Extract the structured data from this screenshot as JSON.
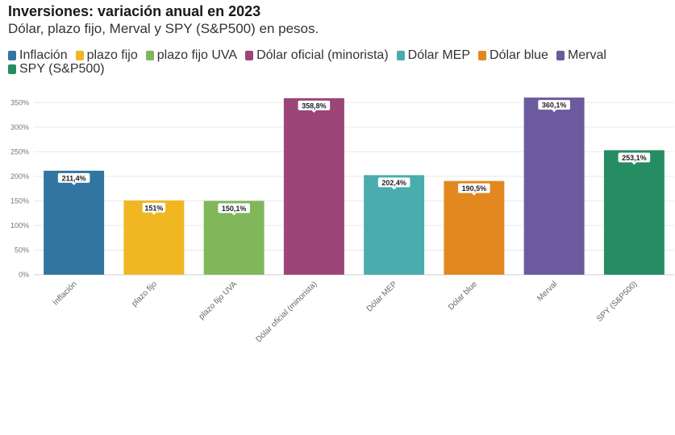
{
  "chart_data": {
    "type": "bar",
    "title": "Inversiones: variación anual en 2023",
    "subtitle": "Dólar, plazo fijo, Merval y SPY (S&P500) en pesos.",
    "xlabel": "",
    "ylabel": "",
    "ylim": [
      0,
      375
    ],
    "yticks": [
      0,
      50,
      100,
      150,
      200,
      250,
      300,
      350
    ],
    "ytick_labels": [
      "0%",
      "50%",
      "100%",
      "150%",
      "200%",
      "250%",
      "300%",
      "350%"
    ],
    "grid": true,
    "legend_position": "top",
    "categories": [
      "Inflación",
      "plazo fijo",
      "plazo fijo UVA",
      "Dólar oficial (minorista)",
      "Dólar MEP",
      "Dólar blue",
      "Merval",
      "SPY (S&P500)"
    ],
    "values": [
      211.4,
      151,
      150.1,
      358.8,
      202.4,
      190.5,
      360.1,
      253.1
    ],
    "value_labels": [
      "211,4%",
      "151%",
      "150,1%",
      "358,8%",
      "202,4%",
      "190,5%",
      "360,1%",
      "253,1%"
    ],
    "colors": [
      "#3275a1",
      "#f0b723",
      "#80b75a",
      "#9c4578",
      "#4aacad",
      "#e2881f",
      "#6c5a9e",
      "#268d63"
    ]
  }
}
